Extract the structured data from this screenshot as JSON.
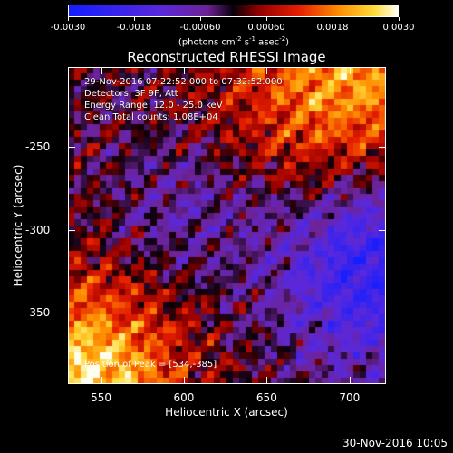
{
  "colorbar": {
    "ticks": [
      "-0.0030",
      "-0.0018",
      "-0.00060",
      "0.00060",
      "0.0018",
      "0.0030"
    ],
    "units_prefix": "(photons cm",
    "units_exp1": "-2",
    "units_mid1": " s",
    "units_exp2": "-1",
    "units_mid2": " asec",
    "units_exp3": "-2",
    "units_suffix": ")",
    "range": [
      -0.003,
      0.003
    ]
  },
  "title": "Reconstructed RHESSI Image",
  "info": {
    "time_range": "29-Nov-2016 07:22:52.000 to 07:32:52.000",
    "detectors": "Detectors: 3F 9F, Att",
    "energy": "Energy Range: 12.0 - 25.0 keV",
    "clean": "Clean    Total counts: 1.08E+04",
    "peak": "Position of Peak = [534,-385]"
  },
  "footer": {
    "date": "30-Nov-2016 10:05"
  },
  "chart_data": {
    "type": "heatmap",
    "title": "Reconstructed RHESSI Image",
    "xlabel": "Heliocentric X (arcsec)",
    "ylabel": "Heliocentric Y (arcsec)",
    "xlim": [
      530,
      722
    ],
    "ylim": [
      -393,
      -202
    ],
    "x_ticks": [
      "550",
      "600",
      "650",
      "700"
    ],
    "y_ticks": [
      "-250",
      "-300",
      "-350"
    ],
    "x_tick_values": [
      550,
      600,
      650,
      700
    ],
    "y_tick_values": [
      -250,
      -300,
      -350
    ],
    "colorbar_range": [
      -0.003,
      0.003
    ],
    "peak_position": [
      534,
      -385
    ]
  }
}
